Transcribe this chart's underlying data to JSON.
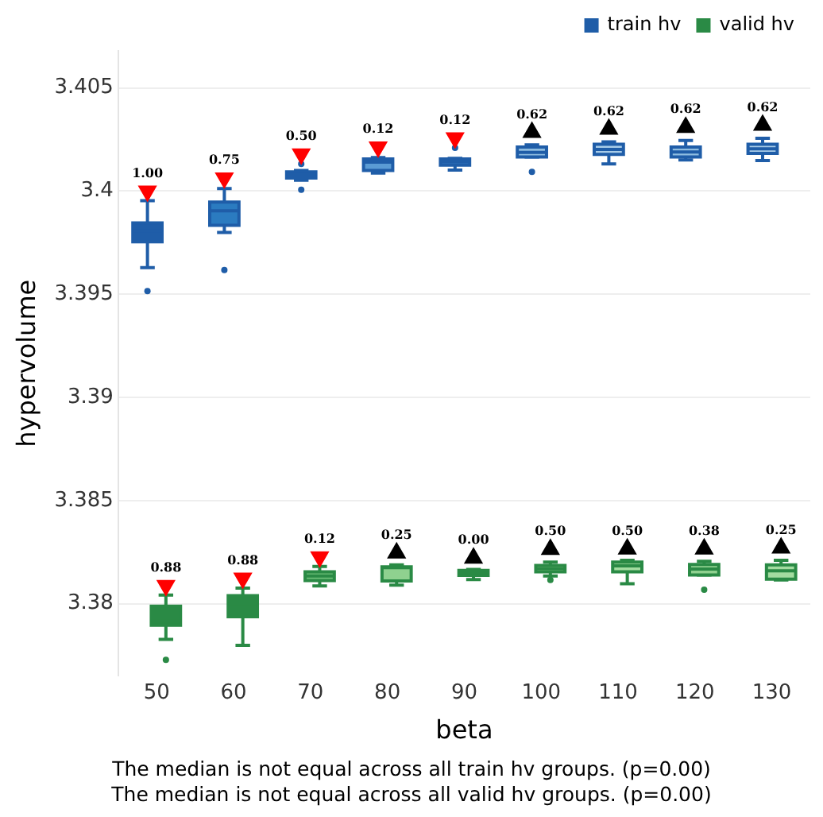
{
  "chart_data": {
    "type": "box",
    "xlabel": "beta",
    "ylabel": "hypervolume",
    "categories": [
      "50",
      "60",
      "70",
      "80",
      "90",
      "100",
      "110",
      "120",
      "130"
    ],
    "ylim": [
      3.3765,
      3.4068
    ],
    "yticks": [
      3.38,
      3.385,
      3.39,
      3.395,
      3.4,
      3.405
    ],
    "grid": "y",
    "legend": "top right",
    "series": [
      {
        "name": "train hv",
        "color": "#1f5da8",
        "colors": [
          "#1f5da8",
          "#2b7bc0",
          "#1f5da8",
          "#5a9bd4",
          "#2b6bb5",
          "#8fbde0",
          "#a8cce8",
          "#8fbde0",
          "#a8cce8"
        ],
        "boxes": [
          {
            "low": 3.39629,
            "q1": 3.39754,
            "median": 3.39808,
            "q3": 3.39846,
            "high": 3.39954,
            "outliers": [
              3.39515
            ]
          },
          {
            "low": 3.398,
            "q1": 3.39834,
            "median": 3.39905,
            "q3": 3.39947,
            "high": 3.40012,
            "outliers": [
              3.39618
            ]
          },
          {
            "low": 3.40053,
            "q1": 3.40064,
            "median": 3.4008,
            "q3": 3.40093,
            "high": 3.401,
            "outliers": [
              3.40007,
              3.40132
            ]
          },
          {
            "low": 3.40088,
            "q1": 3.401,
            "median": 3.40141,
            "q3": 3.40156,
            "high": 3.40163
          },
          {
            "low": 3.40102,
            "q1": 3.40126,
            "median": 3.40144,
            "q3": 3.40156,
            "high": 3.40159,
            "outliers": [
              3.4021
            ]
          },
          {
            "low": 3.40166,
            "q1": 3.40166,
            "median": 3.40188,
            "q3": 3.40214,
            "high": 3.40224,
            "outliers": [
              3.40093
            ]
          },
          {
            "low": 3.40132,
            "q1": 3.40178,
            "median": 3.40202,
            "q3": 3.40227,
            "high": 3.40239
          },
          {
            "low": 3.40151,
            "q1": 3.40166,
            "median": 3.4019,
            "q3": 3.40214,
            "high": 3.40246
          },
          {
            "low": 3.40148,
            "q1": 3.40183,
            "median": 3.40205,
            "q3": 3.40227,
            "high": 3.40256
          }
        ]
      },
      {
        "name": "valid hv",
        "color": "#2a8a45",
        "colors": [
          "#2a8a45",
          "#2a8a45",
          "#6cbf79",
          "#8fd18f",
          "#3a9a55",
          "#8fd18f",
          "#a3dca0",
          "#8fd18f",
          "#a3dca0"
        ],
        "boxes": [
          {
            "low": 3.37827,
            "q1": 3.37895,
            "median": 3.37915,
            "q3": 3.37988,
            "high": 3.38042,
            "outliers": [
              3.37728
            ]
          },
          {
            "low": 3.37798,
            "q1": 3.37937,
            "median": 3.38,
            "q3": 3.38039,
            "high": 3.38075
          },
          {
            "low": 3.38086,
            "q1": 3.38112,
            "median": 3.38134,
            "q3": 3.38154,
            "high": 3.3818
          },
          {
            "low": 3.3809,
            "q1": 3.3811,
            "median": 3.38175,
            "q3": 3.38178,
            "high": 3.38188
          },
          {
            "low": 3.38117,
            "q1": 3.38137,
            "median": 3.38151,
            "q3": 3.38161,
            "high": 3.38166
          },
          {
            "low": 3.38134,
            "q1": 3.38154,
            "median": 3.3817,
            "q3": 3.38185,
            "high": 3.38202,
            "outliers": [
              3.38115
            ]
          },
          {
            "low": 3.38097,
            "q1": 3.38154,
            "median": 3.38183,
            "q3": 3.38202,
            "high": 3.3821
          },
          {
            "low": 3.38139,
            "q1": 3.38139,
            "median": 3.38168,
            "q3": 3.3819,
            "high": 3.38205,
            "outliers": [
              3.38068
            ]
          },
          {
            "low": 3.38115,
            "q1": 3.38119,
            "median": 3.38159,
            "q3": 3.38188,
            "high": 3.3821
          }
        ]
      },
      {
        "type": "scatter",
        "marker": "triangle-down",
        "color": "#ff0000",
        "x": [
          "50",
          "60",
          "70",
          "80",
          "90"
        ],
        "values": [
          3.4,
          3.40064,
          3.4018,
          3.40214,
          3.40258
        ]
      },
      {
        "type": "scatter",
        "marker": "triangle",
        "color": "#000000",
        "x": [
          "100",
          "110",
          "120",
          "130"
        ],
        "values": [
          3.40285,
          3.403,
          3.40309,
          3.4032
        ]
      },
      {
        "type": "scatter",
        "marker": "triangle-down",
        "color": "#ff0000",
        "x": [
          "50",
          "60",
          "70"
        ],
        "values": [
          3.38088,
          3.38124,
          3.38227
        ]
      },
      {
        "type": "scatter",
        "marker": "triangle",
        "color": "#000000",
        "x": [
          "80",
          "90",
          "100",
          "110",
          "120",
          "130"
        ],
        "values": [
          3.38246,
          3.38221,
          3.38263,
          3.38265,
          3.38265,
          3.3827
        ]
      }
    ],
    "annotations": [
      {
        "text": "1.00",
        "x": "50",
        "y": 3.4
      },
      {
        "text": "0.75",
        "x": "60",
        "y": 3.40064
      },
      {
        "text": "0.50",
        "x": "70",
        "y": 3.4018
      },
      {
        "text": "0.12",
        "x": "80",
        "y": 3.40214
      },
      {
        "text": "0.12",
        "x": "90",
        "y": 3.40258
      },
      {
        "text": "0.62",
        "x": "100",
        "y": 3.40285
      },
      {
        "text": "0.62",
        "x": "110",
        "y": 3.403
      },
      {
        "text": "0.62",
        "x": "120",
        "y": 3.40309
      },
      {
        "text": "0.62",
        "x": "130",
        "y": 3.4032
      },
      {
        "text": "0.88",
        "x": "50",
        "y": 3.38088
      },
      {
        "text": "0.88",
        "x": "60",
        "y": 3.38124
      },
      {
        "text": "0.12",
        "x": "70",
        "y": 3.38227
      },
      {
        "text": "0.25",
        "x": "80",
        "y": 3.38246
      },
      {
        "text": "0.00",
        "x": "90",
        "y": 3.38221
      },
      {
        "text": "0.50",
        "x": "100",
        "y": 3.38263
      },
      {
        "text": "0.50",
        "x": "110",
        "y": 3.38265
      },
      {
        "text": "0.38",
        "x": "120",
        "y": 3.38265
      },
      {
        "text": "0.25",
        "x": "130",
        "y": 3.3827
      },
      "The median is not equal across all train hv groups. (p=0.00)",
      "The median is not equal across all valid hv groups. (p=0.00)"
    ]
  }
}
